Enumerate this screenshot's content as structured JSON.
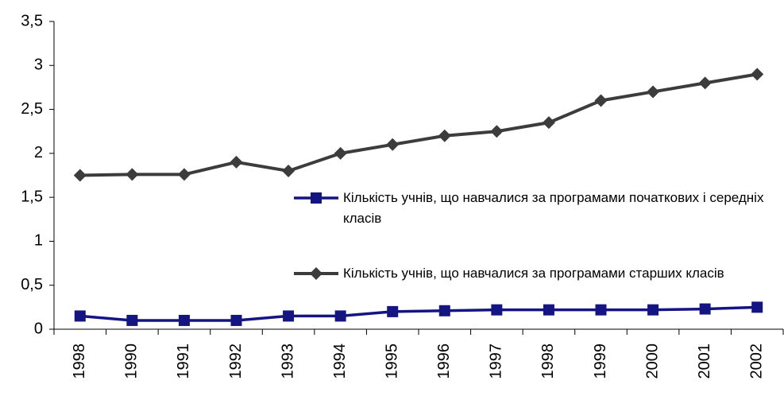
{
  "chart_data": {
    "type": "line",
    "categories": [
      "1998",
      "1990",
      "1991",
      "1992",
      "1993",
      "1994",
      "1995",
      "1996",
      "1997",
      "1998",
      "1999",
      "2000",
      "2001",
      "2002"
    ],
    "series": [
      {
        "name": "Кількість учнів, що навчалися за програмами початкових і середніх класів",
        "color": "#141482",
        "marker": "square",
        "values": [
          0.15,
          0.1,
          0.1,
          0.1,
          0.15,
          0.15,
          0.2,
          0.21,
          0.22,
          0.22,
          0.22,
          0.22,
          0.23,
          0.25
        ]
      },
      {
        "name": "Кількість учнів, що навчалися за програмами старших класів",
        "color": "#3c3c3c",
        "marker": "diamond",
        "values": [
          1.75,
          1.76,
          1.76,
          1.9,
          1.8,
          2.0,
          2.1,
          2.2,
          2.25,
          2.35,
          2.6,
          2.7,
          2.8,
          2.9
        ]
      }
    ],
    "ylim": [
      0,
      3.5
    ],
    "yticks": [
      0,
      {
        "value": 0.5,
        "label": "0,5"
      },
      1,
      {
        "value": 1.5,
        "label": "1,5"
      },
      2,
      {
        "value": 2.5,
        "label": "2,5"
      },
      3,
      {
        "value": 3.5,
        "label": "3,5"
      }
    ],
    "grid": false
  }
}
